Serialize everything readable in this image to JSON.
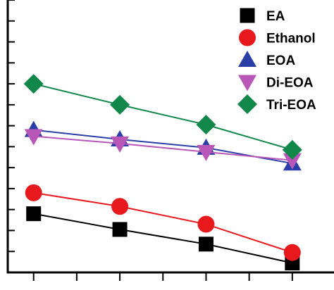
{
  "chart_data": {
    "type": "scatter",
    "x": [
      1,
      2,
      3,
      4
    ],
    "xlim": [
      0.7,
      4.5
    ],
    "ylim": [
      0,
      13
    ],
    "grid": false,
    "legend_position": "top-right",
    "series": [
      {
        "name": "EA",
        "marker": "square",
        "color": "#000000",
        "values": [
          2.8,
          2.05,
          1.35,
          0.45
        ]
      },
      {
        "name": "Ethanol",
        "marker": "circle",
        "color": "#e8191d",
        "values": [
          3.8,
          3.15,
          2.3,
          0.95
        ]
      },
      {
        "name": "EOA",
        "marker": "triangle-up",
        "color": "#2a3ea8",
        "values": [
          6.8,
          6.35,
          5.95,
          5.2
        ]
      },
      {
        "name": "Di-EOA",
        "marker": "triangle-down",
        "color": "#b957b9",
        "values": [
          6.5,
          6.15,
          5.75,
          5.35
        ]
      },
      {
        "name": "Tri-EOA",
        "marker": "diamond",
        "color": "#12874a",
        "values": [
          9.0,
          8.0,
          7.05,
          5.85
        ]
      }
    ]
  }
}
